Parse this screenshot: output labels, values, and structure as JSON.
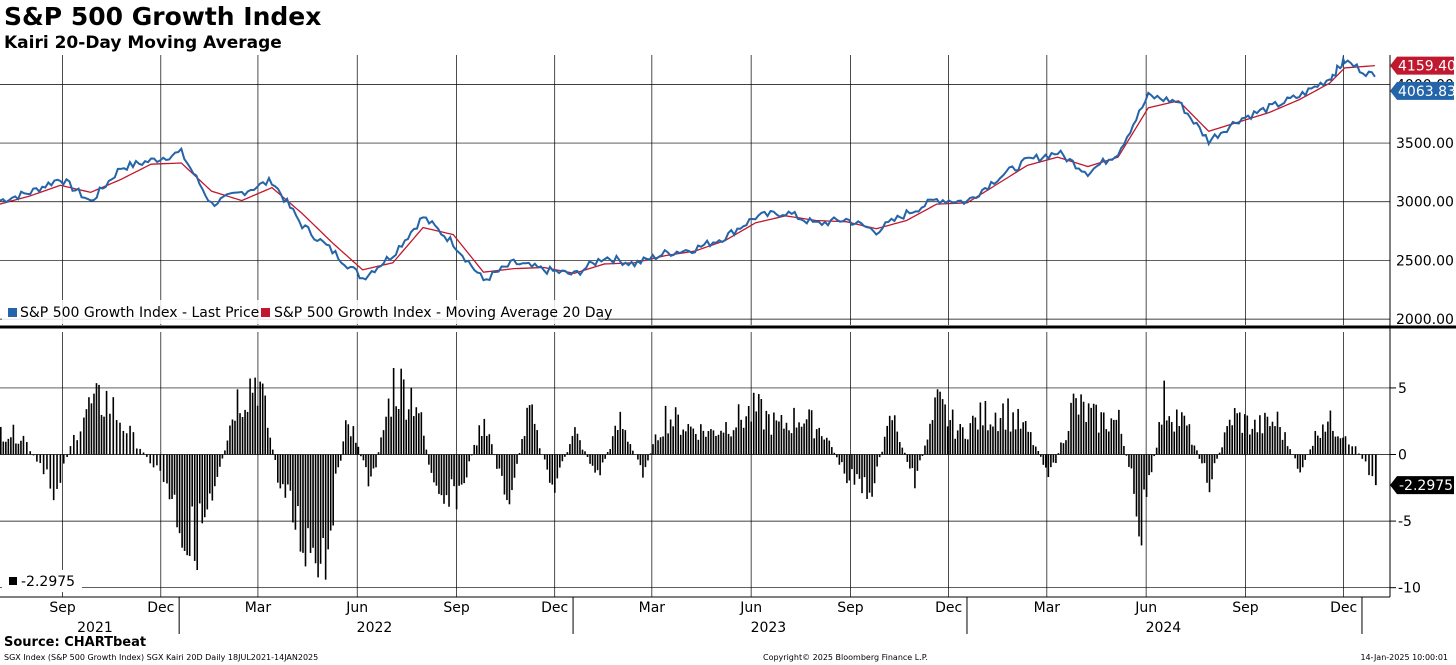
{
  "title": "S&P 500 Growth Index",
  "subtitle": "Kairi 20-Day Moving Average",
  "source": "Source: CHARTbeat",
  "footer": {
    "left": "SGX Index (S&P 500 Growth Index) SGX Kairi 20D  Daily 18JUL2021-14JAN2025",
    "center": "Copyright© 2025 Bloomberg Finance L.P.",
    "right": "14-Jan-2025 10:00:01"
  },
  "colors": {
    "price": "#2464a8",
    "ma": "#c0182e",
    "kairi": "#000000",
    "grid": "#000000"
  },
  "chart_data": [
    {
      "type": "line",
      "title": "",
      "ylim": [
        1950,
        4250
      ],
      "y_ticks": [
        "2000.00",
        "2500.00",
        "3000.00",
        "3500.00",
        "4000.00"
      ],
      "grid": true,
      "legend_position": "bottom-left",
      "x": [
        "2021-07-19",
        "2021-08-16",
        "2021-09-13",
        "2021-10-11",
        "2021-11-08",
        "2021-12-06",
        "2022-01-03",
        "2022-01-31",
        "2022-02-28",
        "2022-03-28",
        "2022-04-25",
        "2022-05-23",
        "2022-06-20",
        "2022-07-18",
        "2022-08-15",
        "2022-09-12",
        "2022-10-10",
        "2022-11-07",
        "2022-12-05",
        "2023-01-02",
        "2023-01-30",
        "2023-02-27",
        "2023-03-27",
        "2023-04-24",
        "2023-05-22",
        "2023-06-19",
        "2023-07-17",
        "2023-08-14",
        "2023-09-11",
        "2023-10-09",
        "2023-11-06",
        "2023-12-04",
        "2024-01-01",
        "2024-01-29",
        "2024-02-26",
        "2024-03-25",
        "2024-04-22",
        "2024-05-20",
        "2024-06-17",
        "2024-07-15",
        "2024-08-12",
        "2024-09-09",
        "2024-10-07",
        "2024-11-04",
        "2024-12-02",
        "2024-12-16",
        "2025-01-13"
      ],
      "series": [
        {
          "name": "S&P 500 Growth Index - Last Price",
          "values": [
            3010,
            3080,
            3200,
            3000,
            3290,
            3350,
            3420,
            2980,
            3080,
            3180,
            2800,
            2580,
            2350,
            2550,
            2870,
            2650,
            2330,
            2480,
            2420,
            2380,
            2530,
            2470,
            2560,
            2600,
            2700,
            2870,
            2910,
            2810,
            2850,
            2750,
            2900,
            3020,
            3000,
            3200,
            3350,
            3420,
            3250,
            3420,
            3900,
            3850,
            3520,
            3700,
            3800,
            3900,
            4050,
            4200,
            4063.83
          ]
        },
        {
          "name": "S&P 500 Growth Index - Moving Average 20 Day",
          "values": [
            2980,
            3050,
            3140,
            3080,
            3190,
            3320,
            3330,
            3090,
            3010,
            3120,
            2900,
            2650,
            2420,
            2480,
            2780,
            2720,
            2400,
            2430,
            2440,
            2390,
            2470,
            2480,
            2540,
            2580,
            2670,
            2820,
            2880,
            2840,
            2830,
            2770,
            2840,
            2980,
            2990,
            3150,
            3310,
            3380,
            3300,
            3380,
            3800,
            3860,
            3600,
            3680,
            3760,
            3870,
            4010,
            4140,
            4159.4
          ]
        }
      ],
      "last_labels": {
        "ma": "4159.40",
        "price": "4063.83"
      }
    },
    {
      "type": "bar",
      "title": "",
      "ylim": [
        -10.7,
        9.2
      ],
      "y_ticks": [
        "5",
        "0",
        "-5",
        "-10"
      ],
      "grid": true,
      "legend_position": "bottom-left",
      "series": [
        {
          "name": "-2.2975"
        }
      ],
      "x": [
        "2021-07-19",
        "2021-08-09",
        "2021-09-06",
        "2021-10-04",
        "2021-10-25",
        "2021-11-22",
        "2021-12-20",
        "2022-01-10",
        "2022-01-31",
        "2022-02-21",
        "2022-03-14",
        "2022-04-04",
        "2022-04-25",
        "2022-05-16",
        "2022-06-06",
        "2022-06-27",
        "2022-07-18",
        "2022-08-08",
        "2022-08-29",
        "2022-09-19",
        "2022-10-10",
        "2022-10-31",
        "2022-11-21",
        "2022-12-12",
        "2023-01-02",
        "2023-01-23",
        "2023-02-13",
        "2023-03-06",
        "2023-03-27",
        "2023-04-17",
        "2023-05-08",
        "2023-05-29",
        "2023-06-19",
        "2023-07-10",
        "2023-07-31",
        "2023-08-21",
        "2023-09-11",
        "2023-10-02",
        "2023-10-23",
        "2023-11-13",
        "2023-12-04",
        "2023-12-25",
        "2024-01-15",
        "2024-02-05",
        "2024-02-26",
        "2024-03-18",
        "2024-04-08",
        "2024-04-29",
        "2024-05-20",
        "2024-06-10",
        "2024-07-01",
        "2024-07-22",
        "2024-08-12",
        "2024-09-02",
        "2024-09-23",
        "2024-10-14",
        "2024-11-04",
        "2024-11-25",
        "2024-12-16",
        "2025-01-13"
      ],
      "values": [
        2.2,
        1.6,
        -3.5,
        4.0,
        5.0,
        1.0,
        -2.5,
        -8.5,
        -4.8,
        4.8,
        7.2,
        -3.0,
        -7.5,
        -8.5,
        3.5,
        -3.0,
        6.5,
        5.2,
        -5.5,
        -3.0,
        3.5,
        -4.5,
        4.0,
        -3.2,
        2.0,
        -2.0,
        3.0,
        -1.5,
        3.5,
        2.5,
        2.0,
        3.0,
        4.0,
        2.5,
        3.5,
        2.0,
        -2.0,
        -3.5,
        3.5,
        -2.5,
        4.5,
        2.0,
        3.5,
        4.0,
        2.0,
        -2.0,
        4.5,
        3.2,
        3.0,
        -6.5,
        4.8,
        2.5,
        -2.5,
        3.5,
        2.5,
        3.0,
        -1.5,
        3.2,
        2.0,
        -2.2975
      ],
      "last_label": "-2.2975"
    }
  ],
  "x_axis": {
    "months": [
      {
        "label": "Sep",
        "date": "2021-09-15"
      },
      {
        "label": "Dec",
        "date": "2021-12-15"
      },
      {
        "label": "Mar",
        "date": "2022-03-15"
      },
      {
        "label": "Jun",
        "date": "2022-06-15"
      },
      {
        "label": "Sep",
        "date": "2022-09-15"
      },
      {
        "label": "Dec",
        "date": "2022-12-15"
      },
      {
        "label": "Mar",
        "date": "2023-03-15"
      },
      {
        "label": "Jun",
        "date": "2023-06-15"
      },
      {
        "label": "Sep",
        "date": "2023-09-15"
      },
      {
        "label": "Dec",
        "date": "2023-12-15"
      },
      {
        "label": "Mar",
        "date": "2024-03-15"
      },
      {
        "label": "Jun",
        "date": "2024-06-15"
      },
      {
        "label": "Sep",
        "date": "2024-09-15"
      },
      {
        "label": "Dec",
        "date": "2024-12-15"
      }
    ],
    "years": [
      {
        "label": "2021",
        "date": "2021-10-15"
      },
      {
        "label": "2022",
        "date": "2022-07-01"
      },
      {
        "label": "2023",
        "date": "2023-07-01"
      },
      {
        "label": "2024",
        "date": "2024-07-01"
      }
    ],
    "year_dividers": [
      "2022-01-01",
      "2023-01-01",
      "2024-01-01",
      "2025-01-01"
    ]
  }
}
